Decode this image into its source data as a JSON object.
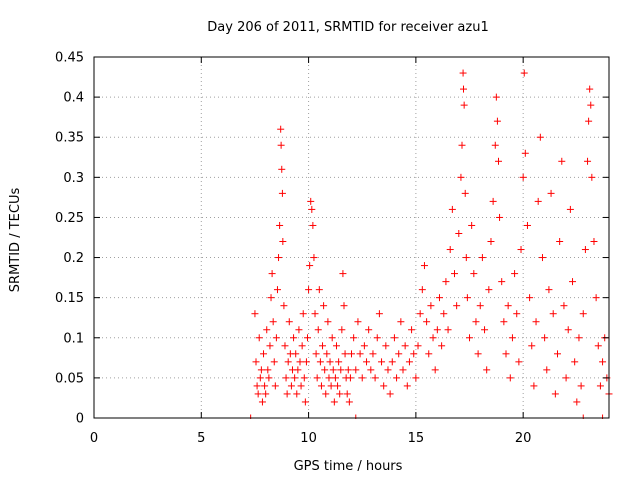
{
  "chart_data": {
    "type": "scatter",
    "title": "Day 206 of 2011, SRMTID for receiver azu1",
    "xlabel": "GPS time / hours",
    "ylabel": "SRMTID / TECUs",
    "xlim": [
      0,
      24
    ],
    "ylim": [
      0,
      0.45
    ],
    "x_ticks": [
      0,
      5,
      10,
      15,
      20
    ],
    "y_ticks": [
      0,
      0.05,
      0.1,
      0.15,
      0.2,
      0.25,
      0.3,
      0.35,
      0.4,
      0.45
    ],
    "x_tick_labels": [
      "0",
      "5",
      "10",
      "15",
      "20"
    ],
    "y_tick_labels": [
      "0",
      "0.05",
      "0.1",
      "0.15",
      "0.2",
      "0.25",
      "0.3",
      "0.35",
      "0.4",
      "0.45"
    ],
    "grid": true,
    "marker": "+",
    "series_color": "#ff0000",
    "series": [
      {
        "name": "azu1",
        "points": [
          [
            7.5,
            0.13
          ],
          [
            7.55,
            0.07
          ],
          [
            7.6,
            0.04
          ],
          [
            7.65,
            0.03
          ],
          [
            7.7,
            0.1
          ],
          [
            7.75,
            0.05
          ],
          [
            7.8,
            0.06
          ],
          [
            7.85,
            0.02
          ],
          [
            7.9,
            0.08
          ],
          [
            7.95,
            0.04
          ],
          [
            8.0,
            0.03
          ],
          [
            8.05,
            0.11
          ],
          [
            8.1,
            0.06
          ],
          [
            8.15,
            0.05
          ],
          [
            8.2,
            0.09
          ],
          [
            8.25,
            0.15
          ],
          [
            8.3,
            0.18
          ],
          [
            8.35,
            0.12
          ],
          [
            8.4,
            0.07
          ],
          [
            8.45,
            0.04
          ],
          [
            8.5,
            0.1
          ],
          [
            8.55,
            0.16
          ],
          [
            8.6,
            0.2
          ],
          [
            8.65,
            0.24
          ],
          [
            8.7,
            0.36
          ],
          [
            8.72,
            0.34
          ],
          [
            8.75,
            0.31
          ],
          [
            8.78,
            0.28
          ],
          [
            8.8,
            0.22
          ],
          [
            8.85,
            0.14
          ],
          [
            8.9,
            0.09
          ],
          [
            8.95,
            0.05
          ],
          [
            9.0,
            0.03
          ],
          [
            9.05,
            0.07
          ],
          [
            9.1,
            0.12
          ],
          [
            9.15,
            0.08
          ],
          [
            9.2,
            0.04
          ],
          [
            9.25,
            0.06
          ],
          [
            9.3,
            0.1
          ],
          [
            9.35,
            0.05
          ],
          [
            9.4,
            0.08
          ],
          [
            9.45,
            0.03
          ],
          [
            9.5,
            0.06
          ],
          [
            9.55,
            0.11
          ],
          [
            9.6,
            0.07
          ],
          [
            9.65,
            0.04
          ],
          [
            9.7,
            0.09
          ],
          [
            9.75,
            0.13
          ],
          [
            9.8,
            0.05
          ],
          [
            9.85,
            0.02
          ],
          [
            9.9,
            0.07
          ],
          [
            9.95,
            0.1
          ],
          [
            10.0,
            0.16
          ],
          [
            10.05,
            0.19
          ],
          [
            10.1,
            0.27
          ],
          [
            10.15,
            0.26
          ],
          [
            10.2,
            0.24
          ],
          [
            10.25,
            0.2
          ],
          [
            10.3,
            0.13
          ],
          [
            10.35,
            0.08
          ],
          [
            10.4,
            0.05
          ],
          [
            10.45,
            0.11
          ],
          [
            10.5,
            0.16
          ],
          [
            10.55,
            0.07
          ],
          [
            10.6,
            0.04
          ],
          [
            10.65,
            0.09
          ],
          [
            10.7,
            0.14
          ],
          [
            10.75,
            0.06
          ],
          [
            10.8,
            0.03
          ],
          [
            10.85,
            0.08
          ],
          [
            10.9,
            0.12
          ],
          [
            10.95,
            0.05
          ],
          [
            11.0,
            0.07
          ],
          [
            11.05,
            0.04
          ],
          [
            11.1,
            0.1
          ],
          [
            11.15,
            0.06
          ],
          [
            11.2,
            0.02
          ],
          [
            11.25,
            0.05
          ],
          [
            11.3,
            0.09
          ],
          [
            11.35,
            0.04
          ],
          [
            11.4,
            0.07
          ],
          [
            11.45,
            0.03
          ],
          [
            11.5,
            0.06
          ],
          [
            11.55,
            0.11
          ],
          [
            11.6,
            0.18
          ],
          [
            11.65,
            0.14
          ],
          [
            11.7,
            0.08
          ],
          [
            11.75,
            0.05
          ],
          [
            11.8,
            0.03
          ],
          [
            11.85,
            0.06
          ],
          [
            11.9,
            0.02
          ],
          [
            11.95,
            0.05
          ],
          [
            12.0,
            0.08
          ],
          [
            12.1,
            0.1
          ],
          [
            12.2,
            0.06
          ],
          [
            12.3,
            0.12
          ],
          [
            12.4,
            0.08
          ],
          [
            12.5,
            0.05
          ],
          [
            12.6,
            0.09
          ],
          [
            12.7,
            0.07
          ],
          [
            12.8,
            0.11
          ],
          [
            12.9,
            0.06
          ],
          [
            13.0,
            0.08
          ],
          [
            13.1,
            0.05
          ],
          [
            13.2,
            0.1
          ],
          [
            13.3,
            0.13
          ],
          [
            13.4,
            0.07
          ],
          [
            13.5,
            0.04
          ],
          [
            13.6,
            0.09
          ],
          [
            13.7,
            0.06
          ],
          [
            13.8,
            0.03
          ],
          [
            13.9,
            0.07
          ],
          [
            14.0,
            0.1
          ],
          [
            14.1,
            0.05
          ],
          [
            14.2,
            0.08
          ],
          [
            14.3,
            0.12
          ],
          [
            14.4,
            0.06
          ],
          [
            14.5,
            0.09
          ],
          [
            14.6,
            0.04
          ],
          [
            14.7,
            0.07
          ],
          [
            14.8,
            0.11
          ],
          [
            14.9,
            0.08
          ],
          [
            15.0,
            0.05
          ],
          [
            15.1,
            0.09
          ],
          [
            15.2,
            0.13
          ],
          [
            15.3,
            0.16
          ],
          [
            15.4,
            0.19
          ],
          [
            15.5,
            0.12
          ],
          [
            15.6,
            0.08
          ],
          [
            15.7,
            0.14
          ],
          [
            15.8,
            0.1
          ],
          [
            15.9,
            0.06
          ],
          [
            16.0,
            0.11
          ],
          [
            16.1,
            0.15
          ],
          [
            16.2,
            0.09
          ],
          [
            16.3,
            0.13
          ],
          [
            16.4,
            0.17
          ],
          [
            16.5,
            0.11
          ],
          [
            16.6,
            0.21
          ],
          [
            16.7,
            0.26
          ],
          [
            16.8,
            0.18
          ],
          [
            16.9,
            0.14
          ],
          [
            17.0,
            0.23
          ],
          [
            17.1,
            0.3
          ],
          [
            17.15,
            0.34
          ],
          [
            17.2,
            0.43
          ],
          [
            17.22,
            0.41
          ],
          [
            17.25,
            0.39
          ],
          [
            17.3,
            0.28
          ],
          [
            17.35,
            0.2
          ],
          [
            17.4,
            0.15
          ],
          [
            17.5,
            0.1
          ],
          [
            17.6,
            0.24
          ],
          [
            17.7,
            0.18
          ],
          [
            17.8,
            0.12
          ],
          [
            17.9,
            0.08
          ],
          [
            18.0,
            0.14
          ],
          [
            18.1,
            0.2
          ],
          [
            18.2,
            0.11
          ],
          [
            18.3,
            0.06
          ],
          [
            18.4,
            0.16
          ],
          [
            18.5,
            0.22
          ],
          [
            18.6,
            0.27
          ],
          [
            18.7,
            0.34
          ],
          [
            18.75,
            0.4
          ],
          [
            18.8,
            0.37
          ],
          [
            18.85,
            0.32
          ],
          [
            18.9,
            0.25
          ],
          [
            19.0,
            0.17
          ],
          [
            19.1,
            0.12
          ],
          [
            19.2,
            0.08
          ],
          [
            19.3,
            0.14
          ],
          [
            19.4,
            0.05
          ],
          [
            19.5,
            0.1
          ],
          [
            19.6,
            0.18
          ],
          [
            19.7,
            0.13
          ],
          [
            19.8,
            0.07
          ],
          [
            19.9,
            0.21
          ],
          [
            20.0,
            0.3
          ],
          [
            20.05,
            0.43
          ],
          [
            20.1,
            0.33
          ],
          [
            20.2,
            0.24
          ],
          [
            20.3,
            0.15
          ],
          [
            20.4,
            0.09
          ],
          [
            20.5,
            0.04
          ],
          [
            20.6,
            0.12
          ],
          [
            20.7,
            0.27
          ],
          [
            20.8,
            0.35
          ],
          [
            20.9,
            0.2
          ],
          [
            21.0,
            0.1
          ],
          [
            21.1,
            0.06
          ],
          [
            21.2,
            0.16
          ],
          [
            21.3,
            0.28
          ],
          [
            21.4,
            0.13
          ],
          [
            21.5,
            0.03
          ],
          [
            21.6,
            0.08
          ],
          [
            21.7,
            0.22
          ],
          [
            21.8,
            0.32
          ],
          [
            21.9,
            0.14
          ],
          [
            22.0,
            0.05
          ],
          [
            22.1,
            0.11
          ],
          [
            22.2,
            0.26
          ],
          [
            22.3,
            0.17
          ],
          [
            22.4,
            0.07
          ],
          [
            22.5,
            0.02
          ],
          [
            22.6,
            0.1
          ],
          [
            22.7,
            0.04
          ],
          [
            22.8,
            0.13
          ],
          [
            22.9,
            0.21
          ],
          [
            23.0,
            0.32
          ],
          [
            23.05,
            0.37
          ],
          [
            23.1,
            0.41
          ],
          [
            23.15,
            0.39
          ],
          [
            23.2,
            0.3
          ],
          [
            23.3,
            0.22
          ],
          [
            23.4,
            0.15
          ],
          [
            23.5,
            0.09
          ],
          [
            23.6,
            0.04
          ],
          [
            23.7,
            0.07
          ],
          [
            23.8,
            0.1
          ],
          [
            23.9,
            0.05
          ],
          [
            24.0,
            0.03
          ]
        ],
        "zero_points": [
          7.3,
          12.2,
          22.8,
          23.7
        ]
      }
    ]
  }
}
